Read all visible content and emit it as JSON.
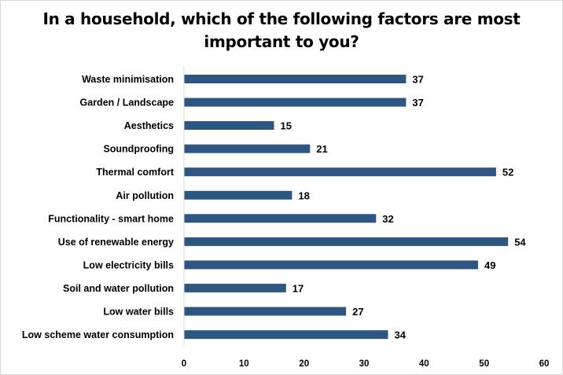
{
  "chart_data": {
    "type": "bar",
    "orientation": "horizontal",
    "title": "In a household, which of the following factors are most important to you?",
    "title_lines": [
      "In a household, which of the following factors are most",
      "important to you?"
    ],
    "categories": [
      "Waste minimisation",
      "Garden / Landscape",
      "Aesthetics",
      "Soundproofing",
      "Thermal comfort",
      "Air pollution",
      "Functionality - smart home",
      "Use of renewable energy",
      "Low electricity bills",
      "Soil and water pollution",
      "Low water bills",
      "Low scheme water consumption"
    ],
    "values": [
      37,
      37,
      15,
      21,
      52,
      18,
      32,
      54,
      49,
      17,
      27,
      34
    ],
    "xlim": [
      0,
      60
    ],
    "xticks": [
      0,
      10,
      20,
      30,
      40,
      50,
      60
    ],
    "xlabel": "",
    "ylabel": "",
    "grid": false,
    "legend": "none",
    "bar_color": "#2e5683"
  }
}
